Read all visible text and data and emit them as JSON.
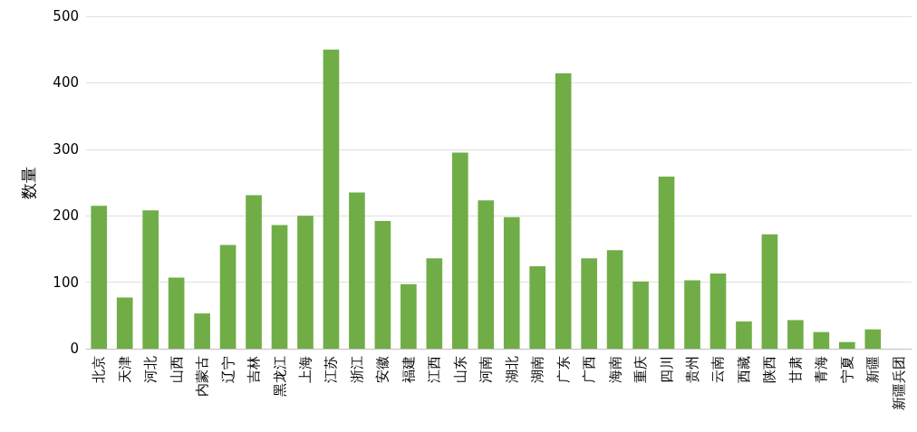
{
  "chart_data": {
    "type": "bar",
    "ylabel": "数量",
    "categories": [
      "北京",
      "天津",
      "河北",
      "山西",
      "内蒙古",
      "辽宁",
      "吉林",
      "黑龙江",
      "上海",
      "江苏",
      "浙江",
      "安徽",
      "福建",
      "江西",
      "山东",
      "河南",
      "湖北",
      "湖南",
      "广东",
      "广西",
      "海南",
      "重庆",
      "四川",
      "贵州",
      "云南",
      "西藏",
      "陕西",
      "甘肃",
      "青海",
      "宁夏",
      "新疆",
      "新疆兵团"
    ],
    "values": [
      215,
      77,
      208,
      107,
      53,
      156,
      231,
      186,
      200,
      450,
      235,
      192,
      97,
      136,
      295,
      223,
      198,
      124,
      414,
      136,
      148,
      101,
      259,
      103,
      113,
      41,
      172,
      43,
      25,
      10,
      29,
      0
    ],
    "color": "#70ad47",
    "ylim": [
      0,
      500
    ],
    "yticks": [
      0,
      100,
      200,
      300,
      400,
      500
    ],
    "grid": "y"
  }
}
